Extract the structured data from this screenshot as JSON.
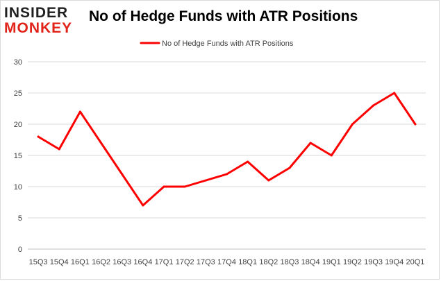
{
  "logo": {
    "line1": "INSIDER",
    "line2": "MONKEY",
    "colors": {
      "line1": "#1f1f1f",
      "line2": "#e2231a"
    }
  },
  "title": "No of Hedge Funds with ATR Positions",
  "chart_data": {
    "type": "line",
    "title": "No of Hedge Funds with ATR Positions",
    "categories": [
      "15Q3",
      "15Q4",
      "16Q1",
      "16Q2",
      "16Q3",
      "16Q4",
      "17Q1",
      "17Q2",
      "17Q3",
      "17Q4",
      "18Q1",
      "18Q2",
      "18Q3",
      "18Q4",
      "19Q1",
      "19Q2",
      "19Q3",
      "19Q4",
      "20Q1"
    ],
    "series": [
      {
        "name": "No of Hedge Funds with ATR Positions",
        "values": [
          18,
          16,
          22,
          17,
          12,
          7,
          10,
          10,
          11,
          12,
          14,
          11,
          13,
          17,
          15,
          20,
          23,
          25,
          20
        ],
        "color": "#ff0000"
      }
    ],
    "ylim": [
      0,
      30
    ],
    "yticks": [
      0,
      5,
      10,
      15,
      20,
      25,
      30
    ],
    "grid": true,
    "legend": "top-center",
    "xlabel": "",
    "ylabel": ""
  }
}
